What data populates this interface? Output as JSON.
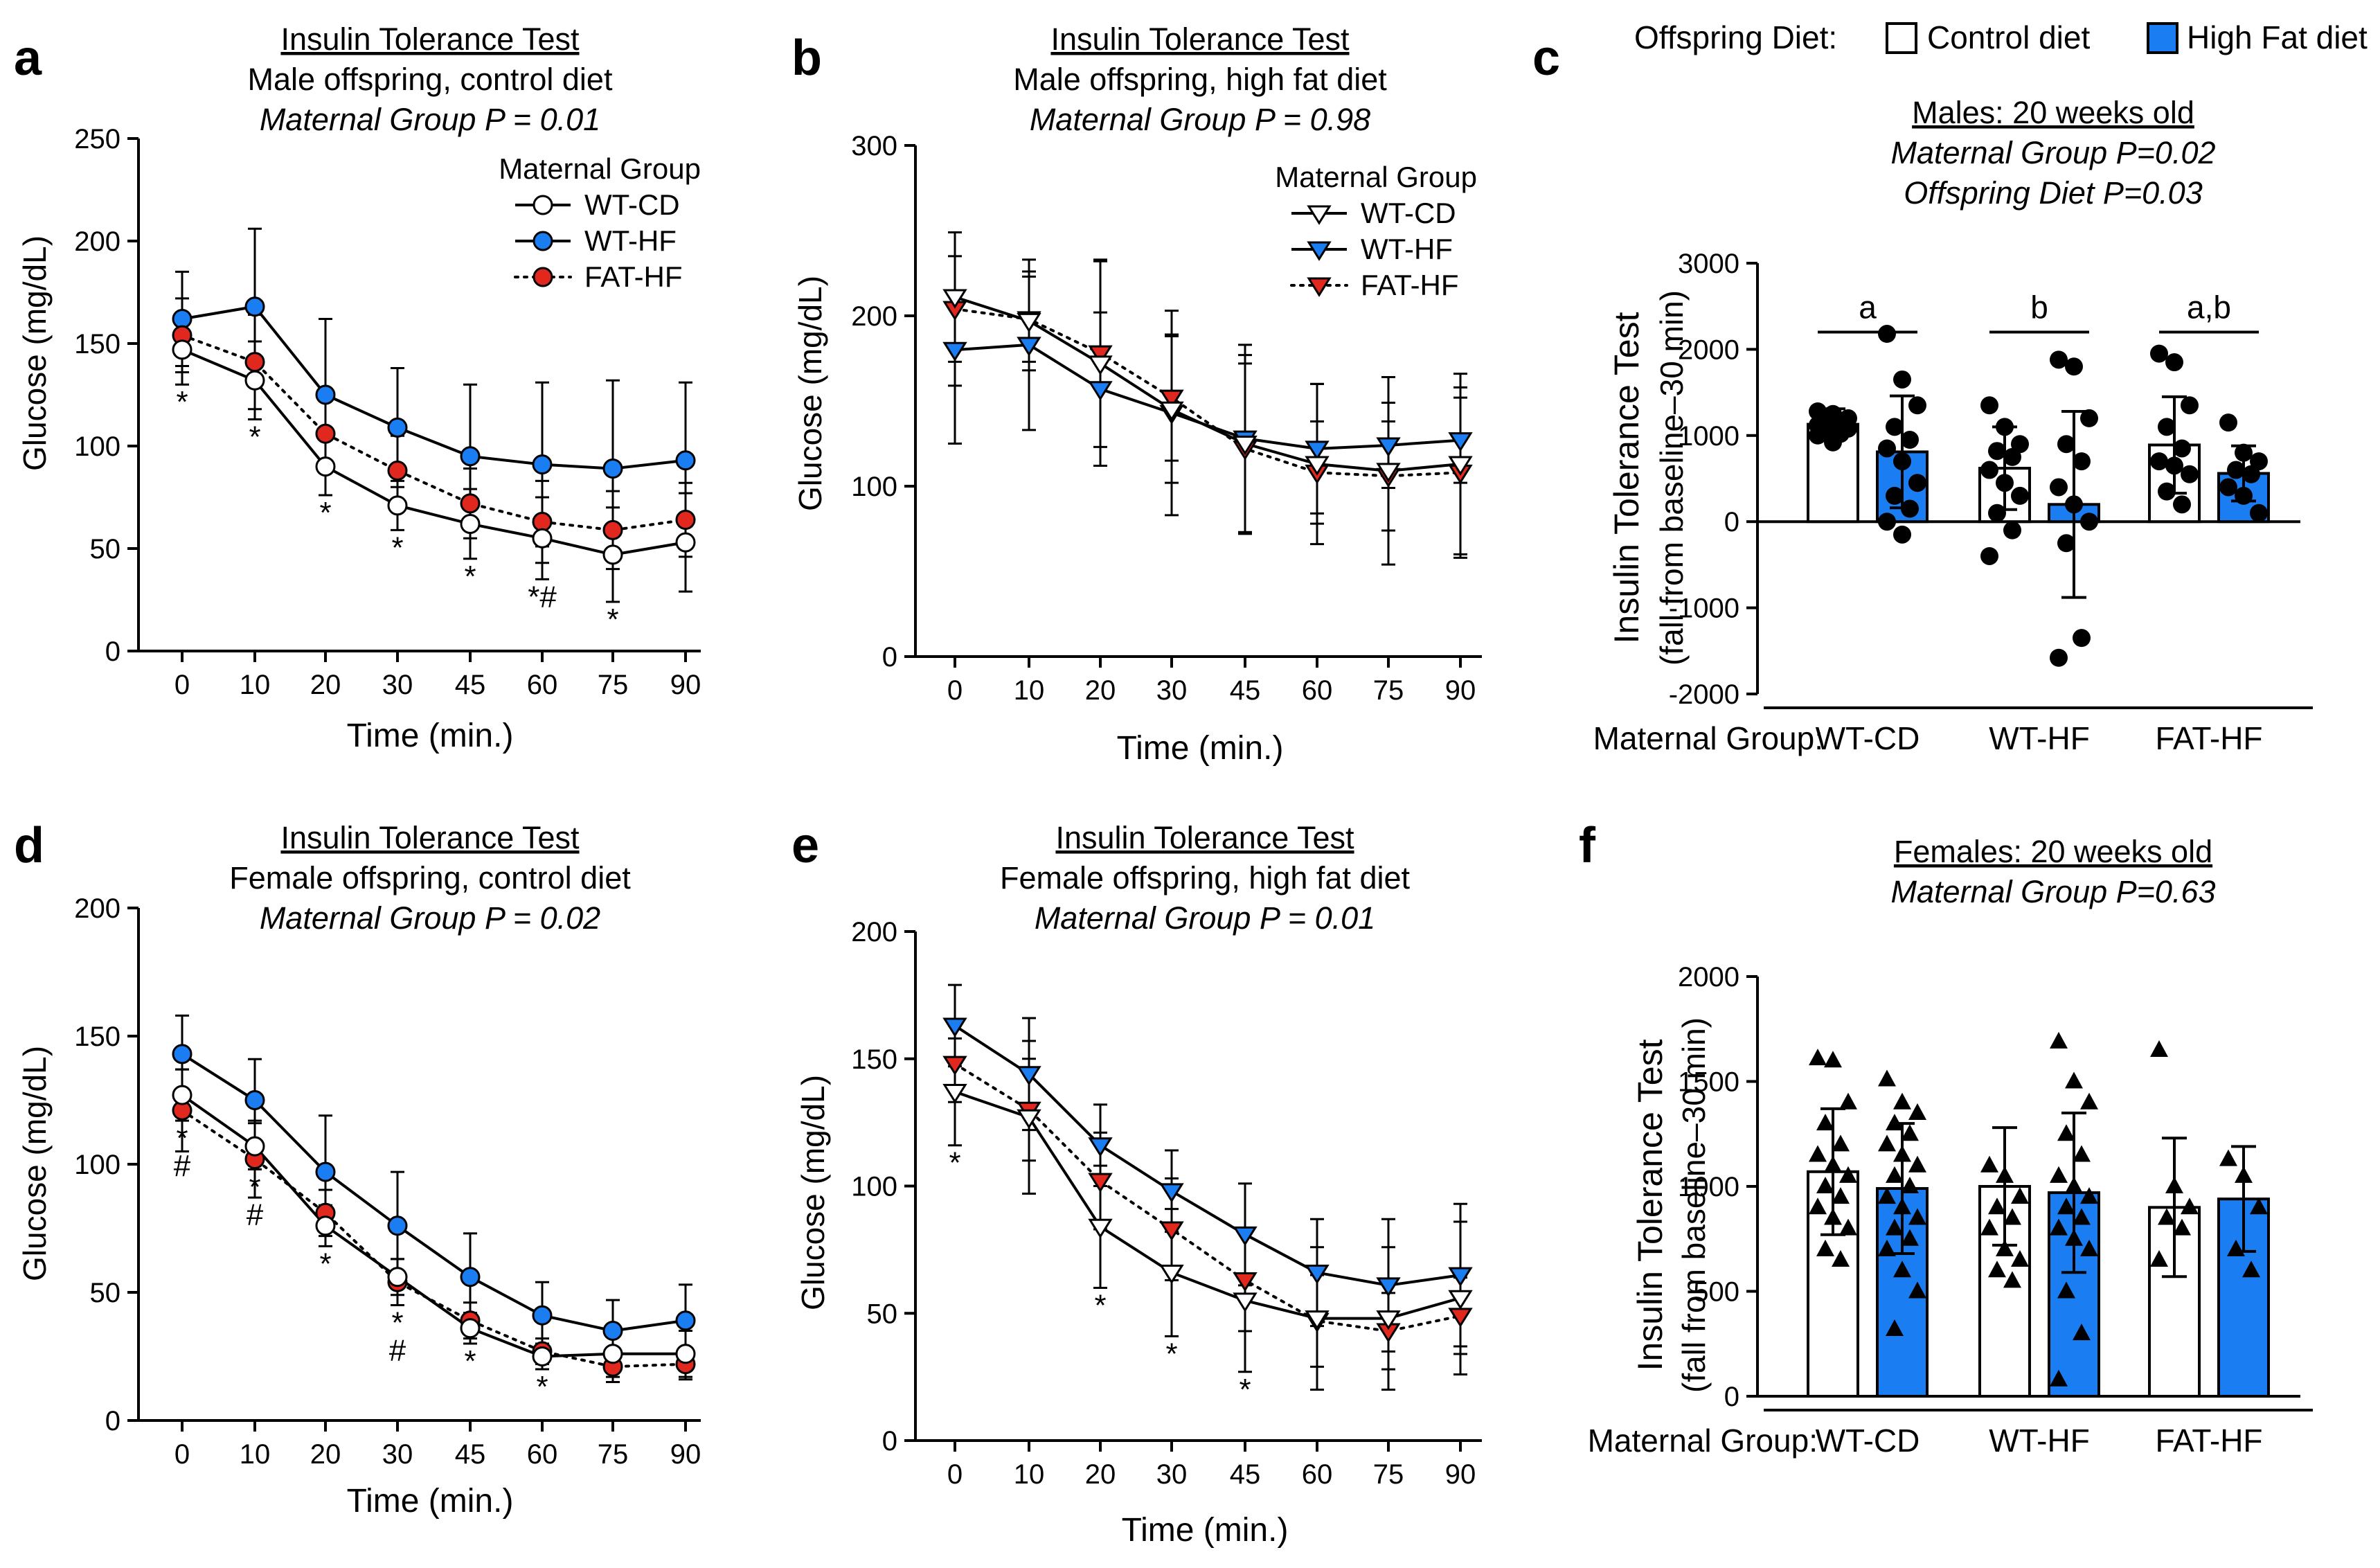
{
  "colors": {
    "hf_blue": "#1a7ef2",
    "fat_red": "#e0281f",
    "control_white": "#ffffff",
    "ink": "#000000"
  },
  "top_legend": {
    "label": "Offspring Diet:",
    "items": [
      "Control diet",
      "High Fat diet"
    ]
  },
  "chart_data": [
    {
      "panel": "a",
      "type": "line",
      "title": "Insulin Tolerance Test",
      "subtitle": "Male offspring, control diet",
      "stat": "Maternal Group P = 0.01",
      "xlabel": "Time (min.)",
      "ylabel": "Glucose (mg/dL)",
      "categories": [
        "0",
        "10",
        "20",
        "30",
        "45",
        "60",
        "75",
        "90"
      ],
      "ylim": [
        0,
        250
      ],
      "yticks": [
        0,
        50,
        100,
        150,
        200,
        250
      ],
      "legend_title": "Maternal Group",
      "legend_position": "top-right",
      "marker": "circle",
      "series": [
        {
          "name": "WT-CD",
          "values": [
            147,
            132,
            90,
            71,
            62,
            55,
            47,
            53
          ],
          "err": [
            17,
            19,
            14,
            12,
            17,
            20,
            23,
            24
          ]
        },
        {
          "name": "WT-HF",
          "values": [
            162,
            168,
            125,
            109,
            95,
            91,
            89,
            93
          ],
          "err": [
            23,
            38,
            37,
            29,
            35,
            40,
            43,
            38
          ]
        },
        {
          "name": "FAT-HF",
          "values": [
            154,
            141,
            106,
            88,
            72,
            63,
            59,
            64
          ],
          "err": [
            18,
            23,
            18,
            17,
            17,
            20,
            19,
            18
          ]
        }
      ],
      "annotations": [
        "*",
        "*",
        "*",
        "*",
        "*",
        "*#",
        "*"
      ]
    },
    {
      "panel": "b",
      "type": "line",
      "title": "Insulin Tolerance Test",
      "subtitle": "Male offspring, high fat diet",
      "stat": "Maternal Group P = 0.98",
      "xlabel": "Time (min.)",
      "ylabel": "Glucose (mg/dL)",
      "categories": [
        "0",
        "10",
        "20",
        "30",
        "45",
        "60",
        "75",
        "90"
      ],
      "ylim": [
        0,
        300
      ],
      "yticks": [
        0,
        100,
        200,
        300
      ],
      "legend_title": "Maternal Group",
      "legend_position": "top-right",
      "marker": "triangle",
      "series": [
        {
          "name": "WT-CD",
          "values": [
            211,
            197,
            172,
            145,
            125,
            113,
            109,
            113
          ],
          "err": [
            38,
            29,
            60,
            43,
            52,
            47,
            55,
            53
          ]
        },
        {
          "name": "WT-HF",
          "values": [
            180,
            183,
            157,
            143,
            128,
            122,
            124,
            127
          ],
          "err": [
            55,
            50,
            45,
            60,
            55,
            38,
            25,
            25
          ]
        },
        {
          "name": "FAT-HF",
          "values": [
            204,
            198,
            178,
            152,
            122,
            108,
            106,
            108
          ],
          "err": [
            45,
            25,
            55,
            37,
            50,
            30,
            32,
            50
          ]
        }
      ],
      "annotations": []
    },
    {
      "panel": "c",
      "type": "bar",
      "title": "Males: 20 weeks old",
      "stat1": "Maternal Group P=0.02",
      "stat2": "Offspring Diet P=0.03",
      "ylabel": "Insulin Tolerance Test",
      "ylabel2": "(fall from baseline–30 min)",
      "xaxis_prefix": "Maternal Group:",
      "groups": [
        "WT-CD",
        "WT-HF",
        "FAT-HF"
      ],
      "ylim": [
        -2000,
        3000
      ],
      "yticks": [
        -2000,
        -1000,
        0,
        1000,
        2000,
        3000
      ],
      "series": [
        {
          "name": "Control diet",
          "values": [
            1130,
            620,
            890
          ],
          "err": [
            180,
            480,
            560
          ]
        },
        {
          "name": "High Fat diet",
          "values": [
            810,
            200,
            560
          ],
          "err": [
            650,
            1080,
            320
          ]
        }
      ],
      "points": [
        [
          1280,
          1250,
          1200,
          1180,
          1150,
          1120,
          1100,
          1080,
          1050,
          1020,
          1000,
          920
        ],
        [
          2180,
          1650,
          1350,
          1100,
          950,
          850,
          700,
          450,
          300,
          150,
          0,
          -150
        ],
        [
          1350,
          1100,
          900,
          820,
          750,
          600,
          450,
          300,
          100,
          -100,
          -400
        ],
        [
          1880,
          1800,
          1200,
          900,
          700,
          400,
          200,
          0,
          -250,
          -1350,
          -1580
        ],
        [
          1950,
          1850,
          1350,
          1100,
          850,
          700,
          650,
          550,
          350,
          200
        ],
        [
          1150,
          800,
          700,
          600,
          550,
          400,
          300,
          100
        ]
      ],
      "sig_letters": [
        "a",
        "b",
        "a,b"
      ]
    },
    {
      "panel": "d",
      "type": "line",
      "title": "Insulin Tolerance Test",
      "subtitle": "Female offspring, control diet",
      "stat": "Maternal Group P = 0.02",
      "xlabel": "Time (min.)",
      "ylabel": "Glucose (mg/dL)",
      "categories": [
        "0",
        "10",
        "20",
        "30",
        "45",
        "60",
        "75",
        "90"
      ],
      "ylim": [
        0,
        200
      ],
      "yticks": [
        0,
        50,
        100,
        150,
        200
      ],
      "marker": "circle",
      "series": [
        {
          "name": "WT-CD",
          "values": [
            127,
            107,
            76,
            56,
            36,
            25,
            26,
            26
          ],
          "err": [
            10,
            9,
            8,
            7,
            6,
            5,
            9,
            9
          ]
        },
        {
          "name": "WT-HF",
          "values": [
            143,
            125,
            97,
            76,
            56,
            41,
            35,
            39
          ],
          "err": [
            15,
            16,
            22,
            21,
            17,
            13,
            12,
            14
          ]
        },
        {
          "name": "FAT-HF",
          "values": [
            121,
            102,
            81,
            54,
            39,
            27,
            21,
            22
          ],
          "err": [
            16,
            15,
            9,
            9,
            7,
            5,
            6,
            6
          ]
        }
      ],
      "annotations": [
        "*",
        "#",
        "*",
        "#",
        "*",
        "*",
        "#",
        "*",
        "*"
      ]
    },
    {
      "panel": "e",
      "type": "line",
      "title": "Insulin Tolerance Test",
      "subtitle": "Female offspring, high fat diet",
      "stat": "Maternal Group P = 0.01",
      "xlabel": "Time (min.)",
      "ylabel": "Glucose (mg/dL)",
      "categories": [
        "0",
        "10",
        "20",
        "30",
        "45",
        "60",
        "75",
        "90"
      ],
      "ylim": [
        0,
        200
      ],
      "yticks": [
        0,
        50,
        100,
        150,
        200
      ],
      "marker": "triangle",
      "series": [
        {
          "name": "WT-CD",
          "values": [
            137,
            127,
            84,
            66,
            55,
            48,
            48,
            56
          ],
          "err": [
            21,
            30,
            24,
            25,
            28,
            28,
            28,
            30
          ]
        },
        {
          "name": "WT-HF",
          "values": [
            163,
            144,
            116,
            98,
            81,
            66,
            61,
            65
          ],
          "err": [
            16,
            22,
            16,
            16,
            20,
            21,
            26,
            28
          ]
        },
        {
          "name": "FAT-HF",
          "values": [
            148,
            130,
            102,
            83,
            63,
            47,
            43,
            49
          ],
          "err": [
            15,
            20,
            19,
            20,
            20,
            18,
            15,
            15
          ]
        }
      ],
      "annotations": [
        "*",
        "*",
        "*",
        "*"
      ]
    },
    {
      "panel": "f",
      "type": "bar",
      "title": "Females: 20 weeks old",
      "stat1": "Maternal Group P=0.63",
      "ylabel": "Insulin Tolerance Test",
      "ylabel2": "(fall from baseline–30 min)",
      "xaxis_prefix": "Maternal Group:",
      "groups": [
        "WT-CD",
        "WT-HF",
        "FAT-HF"
      ],
      "ylim": [
        0,
        2000
      ],
      "yticks": [
        0,
        500,
        1000,
        1500,
        2000
      ],
      "series": [
        {
          "name": "Control diet",
          "values": [
            1070,
            1000,
            900
          ],
          "err": [
            300,
            280,
            330
          ]
        },
        {
          "name": "High Fat diet",
          "values": [
            990,
            970,
            940
          ],
          "err": [
            310,
            380,
            250
          ]
        }
      ],
      "points": [
        [
          1610,
          1600,
          1400,
          1300,
          1200,
          1150,
          1100,
          1050,
          1000,
          950,
          900,
          850,
          800,
          700,
          650
        ],
        [
          1510,
          1400,
          1350,
          1300,
          1250,
          1200,
          1150,
          1100,
          1050,
          1000,
          950,
          900,
          850,
          800,
          750,
          700,
          600,
          500,
          320
        ],
        [
          1100,
          1050,
          950,
          900,
          850,
          800,
          700,
          650,
          600,
          550
        ],
        [
          1690,
          1500,
          1400,
          1250,
          1150,
          1050,
          1000,
          950,
          900,
          850,
          800,
          750,
          700,
          500,
          300,
          80
        ],
        [
          1650,
          1000,
          900,
          850,
          800,
          650
        ],
        [
          1130,
          1050,
          900,
          700,
          600
        ]
      ]
    }
  ]
}
